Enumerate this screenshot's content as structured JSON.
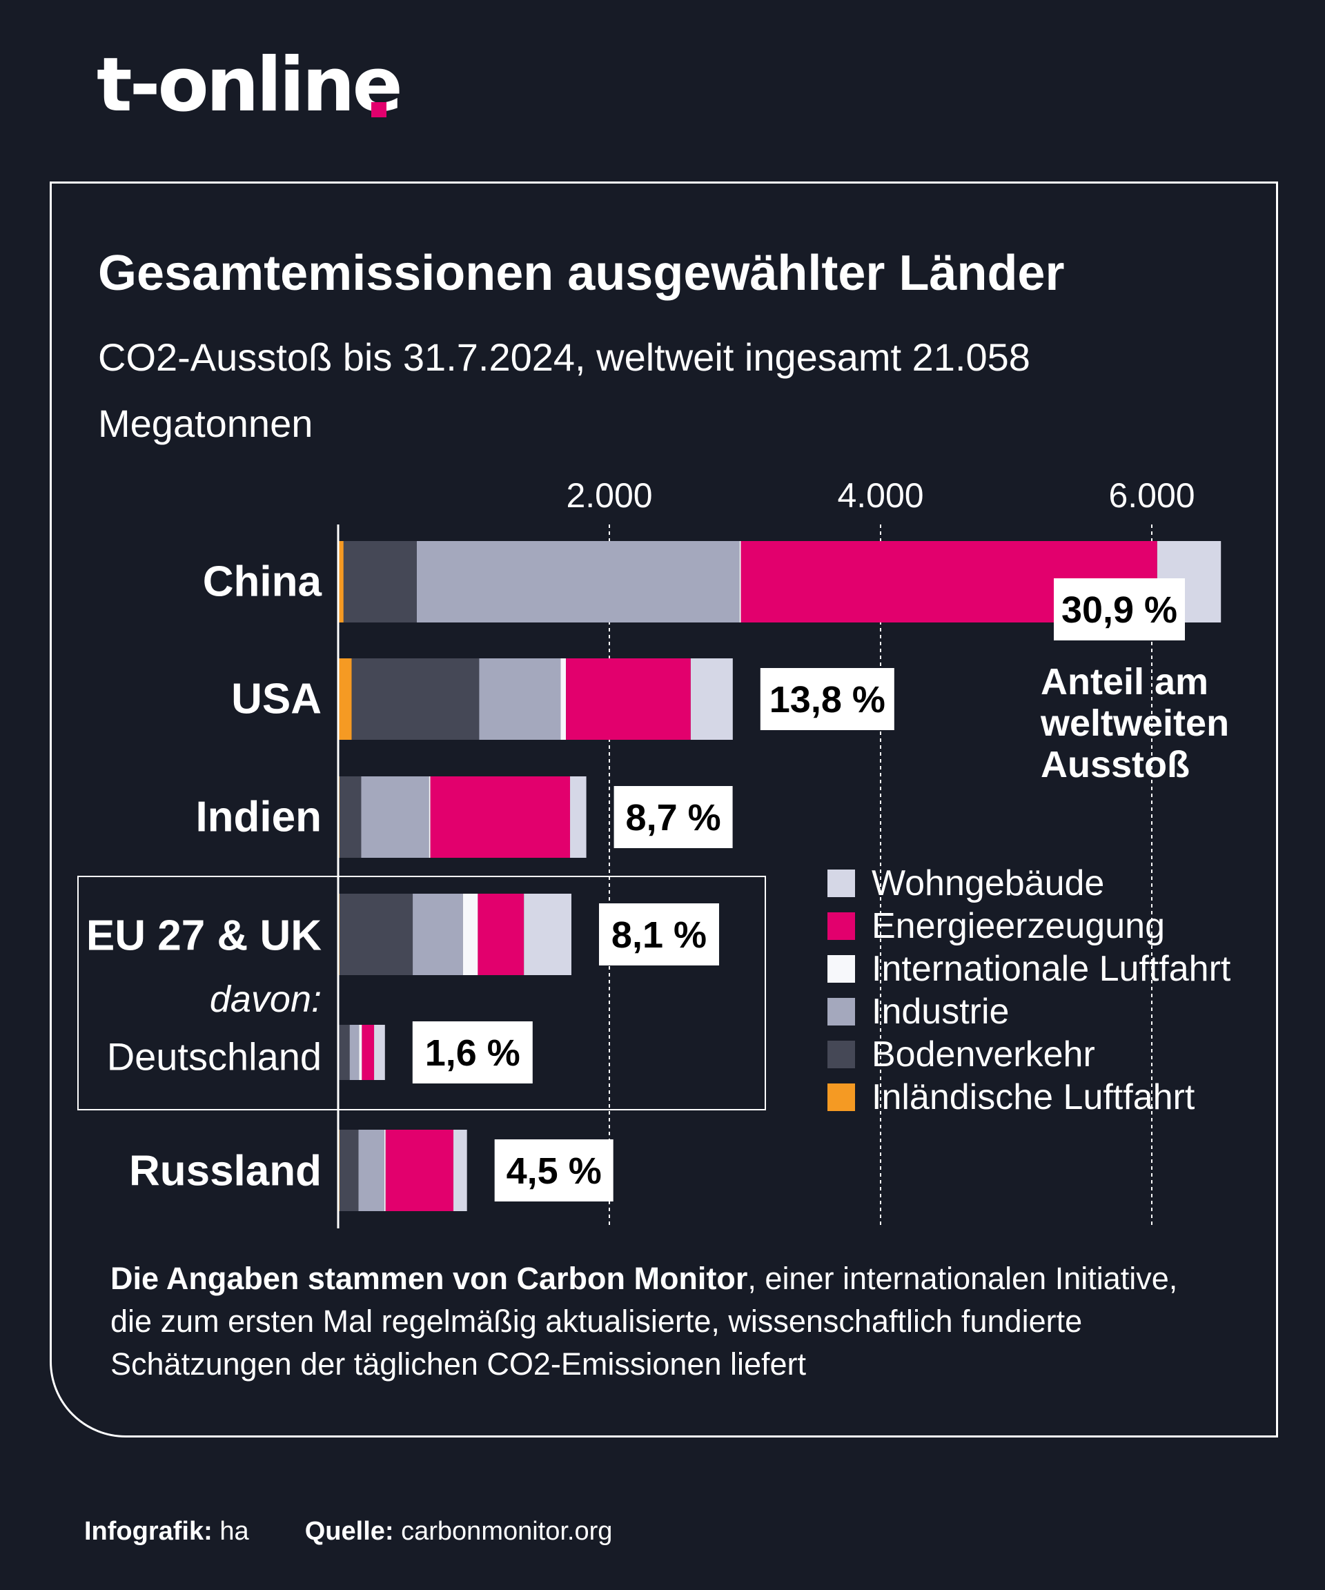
{
  "brand": {
    "logo_text": "t-online",
    "accent": "#e2006d"
  },
  "title": "Gesamtemissionen ausgewählter Länder",
  "subtitle": "CO2-Ausstoß bis 31.7.2024, weltweit ingesamt 21.058 Megatonnen",
  "chart_data": {
    "type": "bar",
    "orientation": "horizontal",
    "stacked": true,
    "unit": "Megatonnen",
    "xlim": [
      0,
      6500
    ],
    "ticks": [
      2000,
      4000,
      6000
    ],
    "tick_labels": [
      "2.000",
      "4.000",
      "6.000"
    ],
    "grid": "dashed vertical lines at ticks",
    "legend_position": "right",
    "categories": [
      "China",
      "USA",
      "Indien",
      "EU 27 & UK",
      "Deutschland",
      "Russland"
    ],
    "category_label_style": [
      "bold",
      "bold",
      "bold",
      "bold",
      "regular",
      "bold"
    ],
    "group_label": "davon:",
    "group_box_categories": [
      "EU 27 & UK",
      "Deutschland"
    ],
    "series": [
      {
        "name": "Inländische Luftfahrt",
        "color": "#f59a23",
        "values": [
          40,
          100,
          10,
          10,
          5,
          10
        ]
      },
      {
        "name": "Bodenverkehr",
        "color": "#454856",
        "values": [
          540,
          940,
          160,
          540,
          80,
          140
        ]
      },
      {
        "name": "Industrie",
        "color": "#a4a8bd",
        "values": [
          2380,
          600,
          500,
          370,
          70,
          190
        ]
      },
      {
        "name": "Internationale Luftfahrt",
        "color": "#f7f8fb",
        "values": [
          10,
          40,
          10,
          110,
          20,
          10
        ]
      },
      {
        "name": "Energieerzeugung",
        "color": "#e2006d",
        "values": [
          3070,
          920,
          1030,
          340,
          90,
          500
        ]
      },
      {
        "name": "Wohngebäude",
        "color": "#d5d7e6",
        "values": [
          470,
          310,
          120,
          350,
          80,
          100
        ]
      }
    ],
    "legend_order": [
      "Wohngebäude",
      "Energieerzeugung",
      "Internationale Luftfahrt",
      "Industrie",
      "Bodenverkehr",
      "Inländische Luftfahrt"
    ],
    "share_labels": [
      "30,9 %",
      "13,8 %",
      "8,7 %",
      "8,1 %",
      "1,6 %",
      "4,5 %"
    ],
    "annotation": "Anteil am weltweiten Ausstoß"
  },
  "footnote": {
    "bold": "Die Angaben stammen von Carbon Monitor",
    "text": ", einer internationalen Initiative, die zum ersten Mal regelmäßig aktualisierte, wissenschaftlich fundierte Schätzungen der täglichen CO2-Emissionen liefert"
  },
  "credits": {
    "infografik_label": "Infografik:",
    "infografik_value": "ha",
    "source_label": "Quelle:",
    "source_value": "carbonmonitor.org"
  }
}
